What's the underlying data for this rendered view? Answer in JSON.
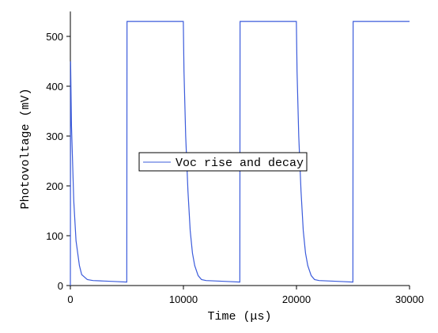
{
  "chart_data": {
    "type": "line",
    "x_label": "Time (μs)",
    "y_label": "Photovoltage (mV)",
    "xlim": [
      0,
      30000
    ],
    "ylim": [
      0,
      550
    ],
    "xticks": [
      0,
      10000,
      20000,
      30000
    ],
    "yticks": [
      0,
      100,
      200,
      300,
      400,
      500
    ],
    "legend": "center",
    "series": [
      {
        "name": "Voc rise and decay",
        "color": "#3b5bdb",
        "x": [
          0,
          20,
          100,
          300,
          500,
          800,
          1000,
          1500,
          2000,
          3000,
          4000,
          4990,
          5010,
          9990,
          10050,
          10200,
          10400,
          10600,
          10800,
          11000,
          11300,
          11600,
          12000,
          13000,
          14000,
          14990,
          15010,
          19990,
          20050,
          20200,
          20400,
          20600,
          20800,
          21000,
          21300,
          21600,
          22000,
          23000,
          24000,
          24990,
          25010,
          30000
        ],
        "values": [
          0,
          450,
          320,
          170,
          90,
          40,
          22,
          12,
          10,
          9,
          8,
          7,
          530,
          530,
          430,
          300,
          190,
          110,
          65,
          40,
          20,
          12,
          10,
          9,
          8,
          7,
          530,
          530,
          430,
          300,
          190,
          110,
          65,
          40,
          20,
          12,
          10,
          9,
          8,
          7,
          530,
          530
        ]
      }
    ]
  }
}
